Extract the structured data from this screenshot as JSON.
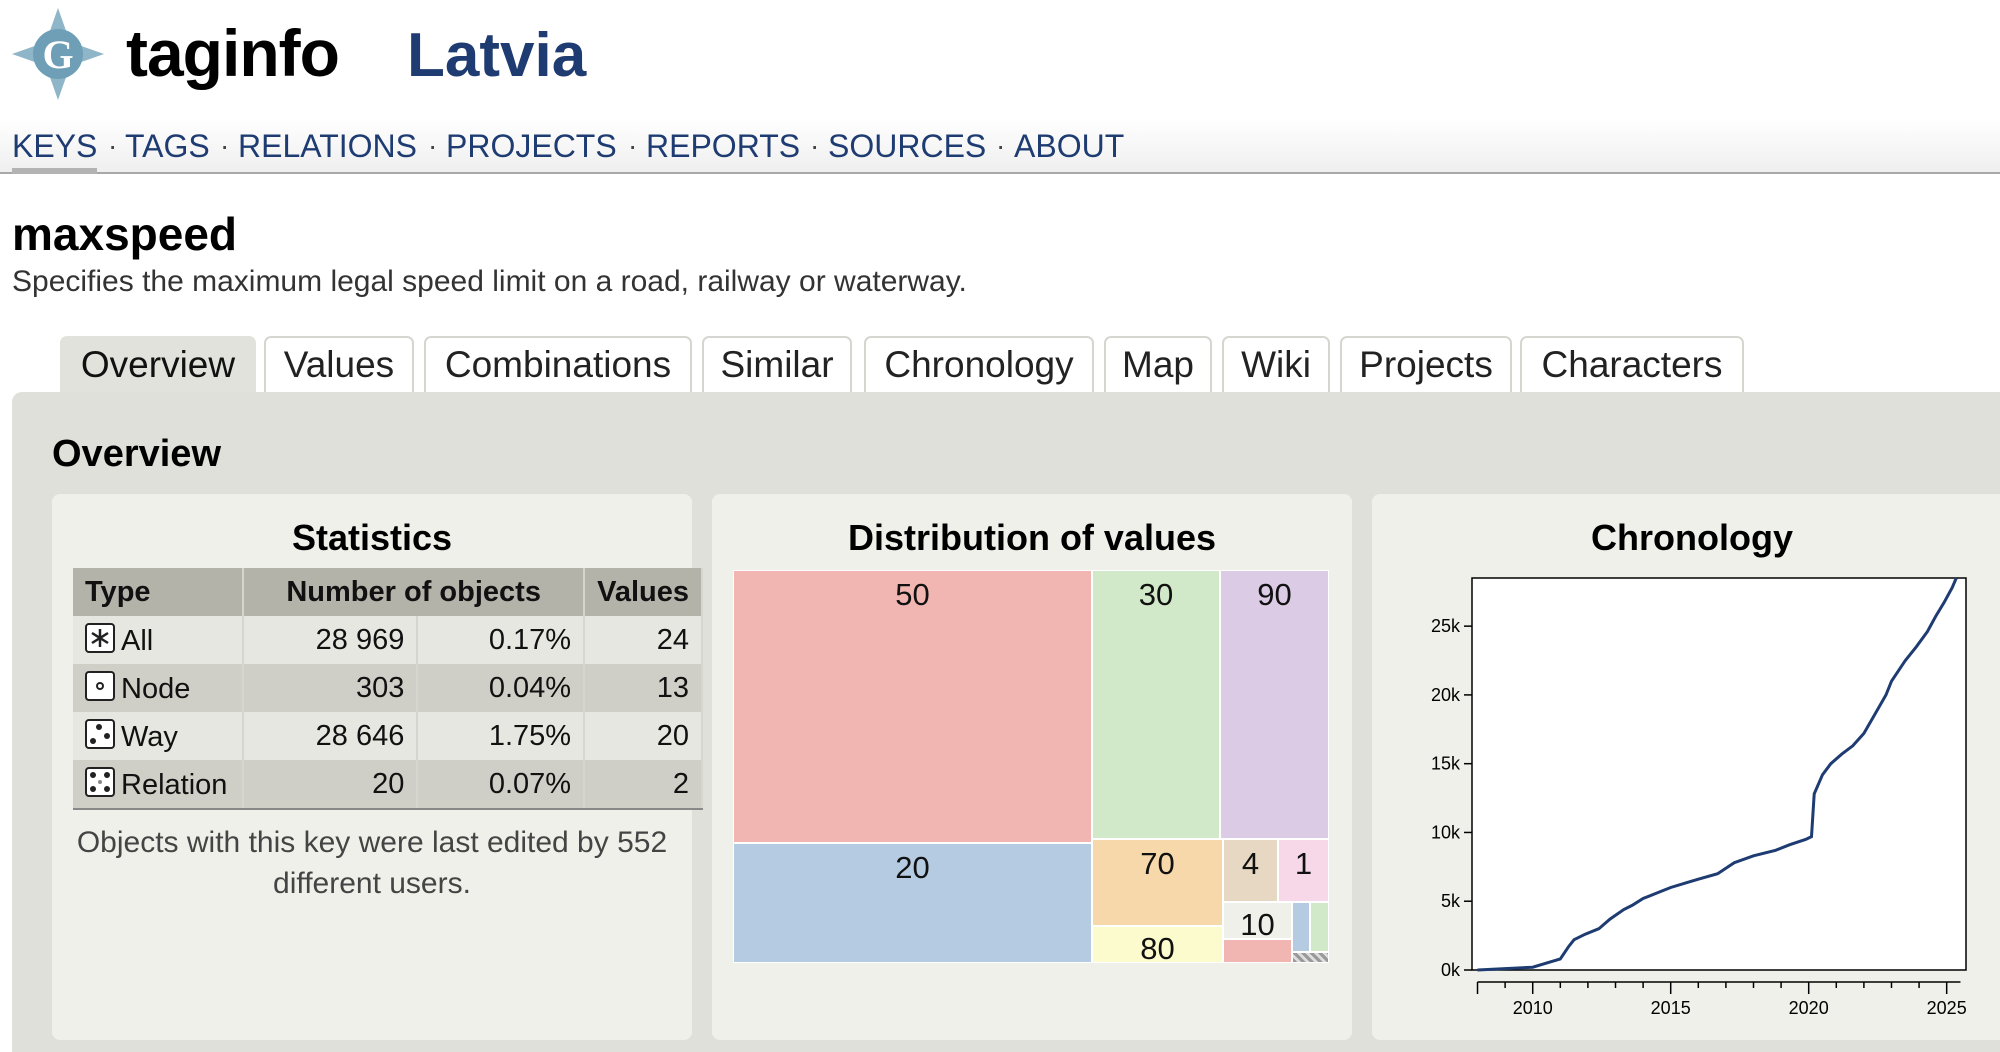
{
  "header": {
    "site_name": "taginfo",
    "country": "Latvia",
    "logo_letter": "G"
  },
  "nav": {
    "items": [
      "KEYS",
      "TAGS",
      "RELATIONS",
      "PROJECTS",
      "REPORTS",
      "SOURCES",
      "ABOUT"
    ],
    "active": "KEYS",
    "separator": "·"
  },
  "page": {
    "title": "maxspeed",
    "description": "Specifies the maximum legal speed limit on a road, railway or waterway."
  },
  "tabs": [
    "Overview",
    "Values",
    "Combinations",
    "Similar",
    "Chronology",
    "Map",
    "Wiki",
    "Projects",
    "Characters"
  ],
  "active_tab": "Overview",
  "overview": {
    "heading": "Overview",
    "statistics": {
      "title": "Statistics",
      "headers": {
        "type": "Type",
        "objects": "Number of objects",
        "values": "Values"
      },
      "rows": [
        {
          "icon": "all-icon",
          "type": "All",
          "count": "28 969",
          "percent": "0.17%",
          "values": "24"
        },
        {
          "icon": "node-icon",
          "type": "Node",
          "count": "303",
          "percent": "0.04%",
          "values": "13"
        },
        {
          "icon": "way-icon",
          "type": "Way",
          "count": "28 646",
          "percent": "1.75%",
          "values": "20"
        },
        {
          "icon": "relation-icon",
          "type": "Relation",
          "count": "20",
          "percent": "0.07%",
          "values": "2"
        }
      ],
      "users_text": "Objects with this key were last edited by 552 different users."
    },
    "distribution": {
      "title": "Distribution of values",
      "cells": [
        {
          "label": "50",
          "color": "#f1b6b2"
        },
        {
          "label": "20",
          "color": "#b4cbe2"
        },
        {
          "label": "30",
          "color": "#d1e9c8"
        },
        {
          "label": "90",
          "color": "#dccbe4"
        },
        {
          "label": "70",
          "color": "#f6d8ab"
        },
        {
          "label": "80",
          "color": "#fbfbcd"
        },
        {
          "label": "4",
          "color": "#e6d8c2"
        },
        {
          "label": "1",
          "color": "#f6d8e8"
        },
        {
          "label": "10",
          "color": "#f0f0eb"
        },
        {
          "label": "",
          "color": "#b4cbe2"
        },
        {
          "label": "",
          "color": "#d1e9c8"
        },
        {
          "label": "",
          "color": "#f1b6b2"
        },
        {
          "label": "",
          "color": "#bdbdbd"
        }
      ]
    },
    "chronology": {
      "title": "Chronology"
    }
  },
  "chart_data": {
    "type": "line",
    "title": "Chronology",
    "x_ticks": [
      "2010",
      "2015",
      "2020",
      "2025"
    ],
    "y_ticks": [
      "0k",
      "5k",
      "10k",
      "15k",
      "20k",
      "25k"
    ],
    "ylim": [
      0,
      28500
    ],
    "xlim": [
      2007.8,
      2025.7
    ],
    "line_color": "#1e3c72",
    "x": [
      2008.0,
      2009.0,
      2010.0,
      2010.5,
      2011.0,
      2011.3,
      2011.5,
      2011.9,
      2012.4,
      2012.8,
      2013.3,
      2013.6,
      2014.0,
      2014.5,
      2015.0,
      2015.5,
      2016.0,
      2016.7,
      2017.3,
      2018.0,
      2018.8,
      2019.3,
      2019.9,
      2020.1,
      2020.2,
      2020.5,
      2020.8,
      2021.2,
      2021.6,
      2022.0,
      2022.4,
      2022.8,
      2023.0,
      2023.5,
      2023.9,
      2024.3,
      2024.6,
      2024.9,
      2025.2,
      2025.35
    ],
    "y": [
      0,
      100,
      200,
      500,
      800,
      1700,
      2200,
      2600,
      3000,
      3700,
      4400,
      4700,
      5200,
      5600,
      6000,
      6300,
      6600,
      7000,
      7800,
      8300,
      8700,
      9100,
      9500,
      9700,
      12800,
      14200,
      15000,
      15700,
      16300,
      17200,
      18600,
      20000,
      21000,
      22500,
      23500,
      24600,
      25700,
      26700,
      27800,
      28500
    ]
  }
}
